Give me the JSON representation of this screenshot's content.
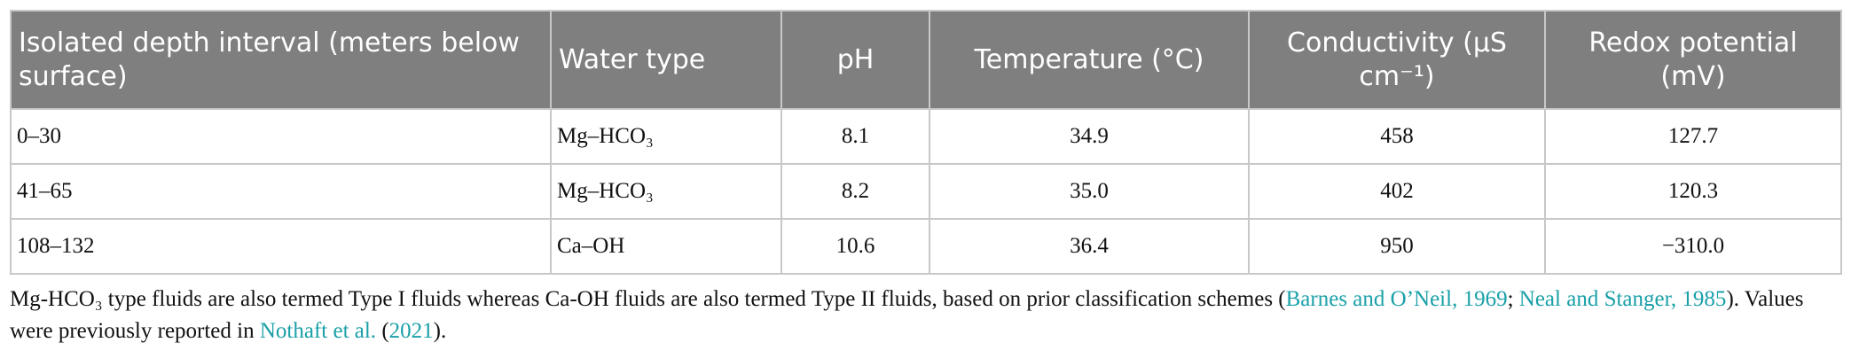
{
  "table": {
    "headers": [
      "Isolated depth interval (meters below surface)",
      "Water type",
      "pH",
      "Temperature (°C)",
      "Conductivity (μS cm⁻¹)",
      "Redox potential (mV)"
    ],
    "align": [
      "left",
      "left",
      "center",
      "center",
      "center",
      "center"
    ],
    "rows": [
      [
        "0–30",
        "Mg–HCO₃",
        "8.1",
        "34.9",
        "458",
        "127.7"
      ],
      [
        "41–65",
        "Mg–HCO₃",
        "8.2",
        "35.0",
        "402",
        "120.3"
      ],
      [
        "108–132",
        "Ca–OH",
        "10.6",
        "36.4",
        "950",
        "−310.0"
      ]
    ]
  },
  "footnote": {
    "segments": [
      {
        "text": "Mg-HCO₃ type fluids are also termed Type I fluids whereas Ca-OH fluids are also termed Type II fluids, based on prior classification schemes (",
        "type": "text"
      },
      {
        "text": "Barnes and O’Neil, 1969",
        "type": "citation"
      },
      {
        "text": "; ",
        "type": "text"
      },
      {
        "text": "Neal and Stanger, 1985",
        "type": "citation"
      },
      {
        "text": "). Values were previously reported in ",
        "type": "text"
      },
      {
        "text": "Nothaft et al.",
        "type": "citation"
      },
      {
        "text": " (",
        "type": "text"
      },
      {
        "text": "2021",
        "type": "citation"
      },
      {
        "text": ").",
        "type": "text"
      }
    ]
  }
}
